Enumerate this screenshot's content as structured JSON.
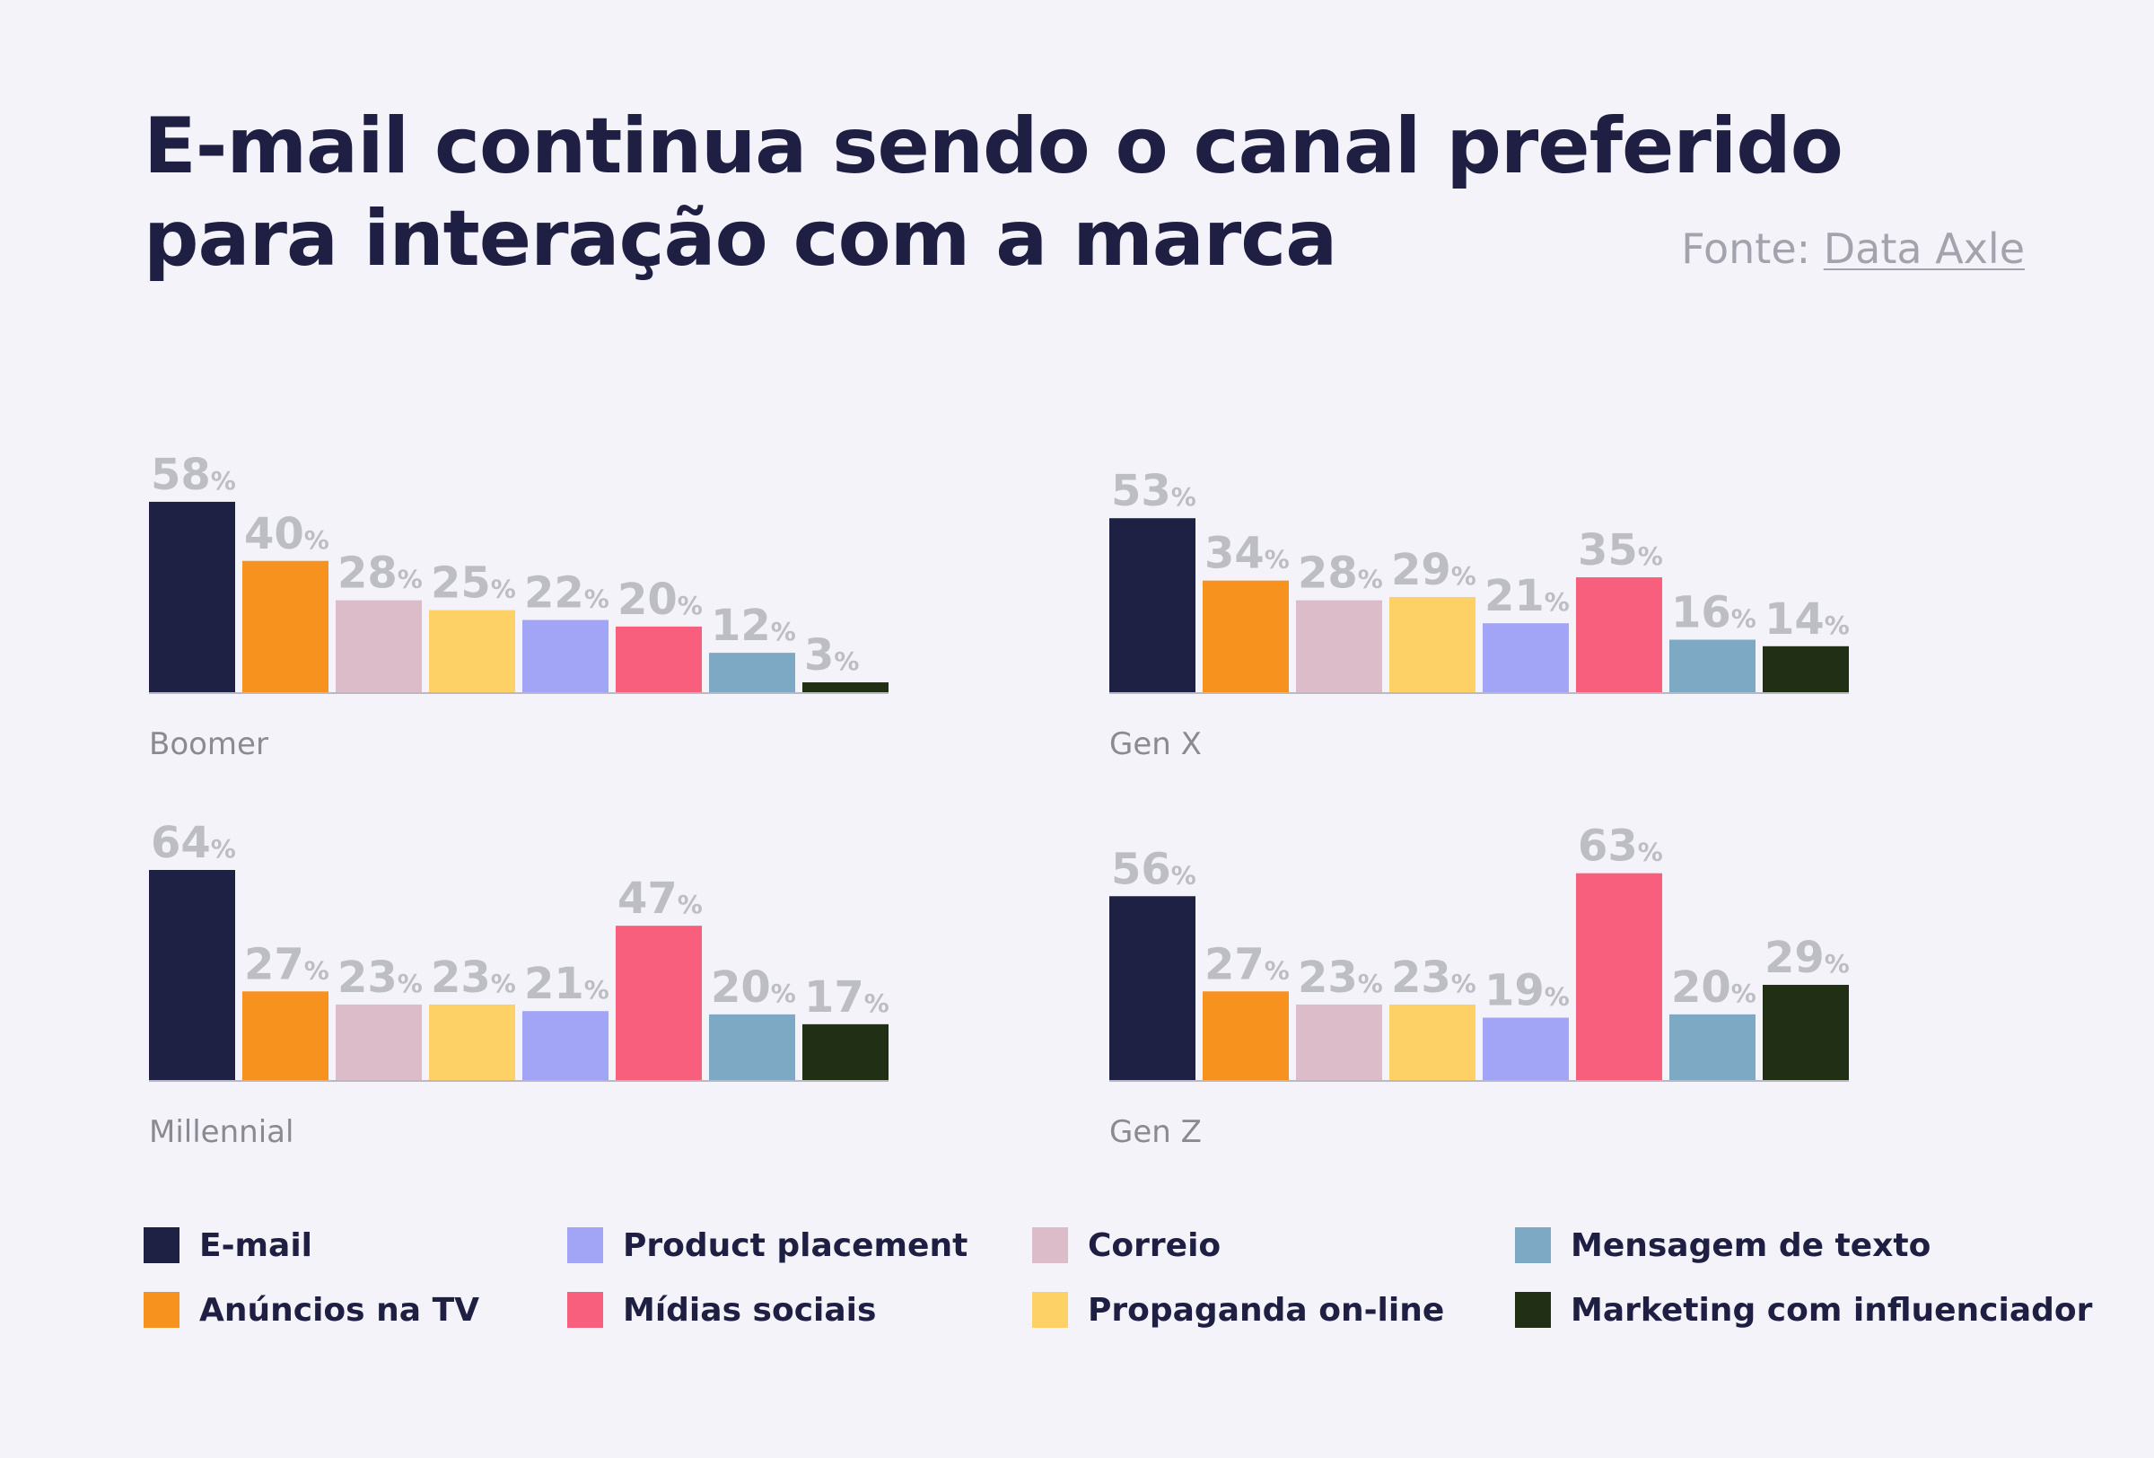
{
  "title_lines": [
    "E-mail continua sendo o canal preferido",
    "para interação com a marca"
  ],
  "source": {
    "prefix": "Fonte: ",
    "link": "Data Axle"
  },
  "colors": {
    "email": "#1e2044",
    "tv": "#f7921e",
    "mail": "#dcbcc8",
    "online_ads": "#fdd166",
    "product_placement": "#a2a5f5",
    "social": "#f75f7c",
    "text": "#7ea9c4",
    "influencer": "#212f15",
    "value_label": "#bdbdc4",
    "axis_label": "#8a8a93",
    "baseline": "#b9b9c2"
  },
  "legend": [
    {
      "label": "E-mail",
      "color_key": "email"
    },
    {
      "label": "Product placement",
      "color_key": "product_placement"
    },
    {
      "label": "Correio",
      "color_key": "mail"
    },
    {
      "label": "Mensagem de texto",
      "color_key": "text"
    },
    {
      "label": "Anúncios na TV",
      "color_key": "tv"
    },
    {
      "label": "Mídias sociais",
      "color_key": "social"
    },
    {
      "label": "Propaganda on-line",
      "color_key": "online_ads"
    },
    {
      "label": "Marketing com influenciador",
      "color_key": "influencer"
    }
  ],
  "chart_data": [
    {
      "type": "bar",
      "group": "Boomer",
      "categories": [
        "E-mail",
        "Anúncios na TV",
        "Correio",
        "Propaganda on-line",
        "Product placement",
        "Mídias sociais",
        "Mensagem de texto",
        "Marketing com influenciador"
      ],
      "color_keys": [
        "email",
        "tv",
        "mail",
        "online_ads",
        "product_placement",
        "social",
        "text",
        "influencer"
      ],
      "values": [
        58,
        40,
        28,
        25,
        22,
        20,
        12,
        3
      ],
      "unit": "%",
      "ylim": [
        0,
        64
      ]
    },
    {
      "type": "bar",
      "group": "Gen X",
      "categories": [
        "E-mail",
        "Anúncios na TV",
        "Correio",
        "Propaganda on-line",
        "Product placement",
        "Mídias sociais",
        "Mensagem de texto",
        "Marketing com influenciador"
      ],
      "color_keys": [
        "email",
        "tv",
        "mail",
        "online_ads",
        "product_placement",
        "social",
        "text",
        "influencer"
      ],
      "values": [
        53,
        34,
        28,
        29,
        21,
        35,
        16,
        14
      ],
      "unit": "%",
      "ylim": [
        0,
        64
      ]
    },
    {
      "type": "bar",
      "group": "Millennial",
      "categories": [
        "E-mail",
        "Anúncios na TV",
        "Correio",
        "Propaganda on-line",
        "Product placement",
        "Mídias sociais",
        "Mensagem de texto",
        "Marketing com influenciador"
      ],
      "color_keys": [
        "email",
        "tv",
        "mail",
        "online_ads",
        "product_placement",
        "social",
        "text",
        "influencer"
      ],
      "values": [
        64,
        27,
        23,
        23,
        21,
        47,
        20,
        17
      ],
      "unit": "%",
      "ylim": [
        0,
        64
      ]
    },
    {
      "type": "bar",
      "group": "Gen Z",
      "categories": [
        "E-mail",
        "Anúncios na TV",
        "Correio",
        "Propaganda on-line",
        "Product placement",
        "Mídias sociais",
        "Mensagem de texto",
        "Marketing com influenciador"
      ],
      "color_keys": [
        "email",
        "tv",
        "mail",
        "online_ads",
        "product_placement",
        "social",
        "text",
        "influencer"
      ],
      "values": [
        56,
        27,
        23,
        23,
        19,
        63,
        20,
        29
      ],
      "unit": "%",
      "ylim": [
        0,
        64
      ]
    }
  ]
}
